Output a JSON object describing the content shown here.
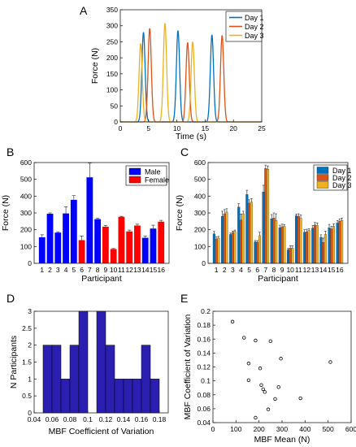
{
  "colors": {
    "day1": "#0072BD",
    "day2": "#D95319",
    "day3": "#EDB120",
    "male": "#0000ff",
    "female": "#ff0000",
    "hist": "#2a1fb0"
  },
  "chart_data": [
    {
      "panel": "A",
      "type": "line",
      "xlabel": "Time (s)",
      "ylabel": "Force (N)",
      "xlim": [
        0,
        25
      ],
      "ylim": [
        0,
        350
      ],
      "xticks": [
        0,
        5,
        10,
        15,
        20,
        25
      ],
      "yticks": [
        0,
        50,
        100,
        150,
        200,
        250,
        300,
        350
      ],
      "legend": [
        "Day 1",
        "Day 2",
        "Day 3"
      ],
      "legend_position": "top-right",
      "series": [
        {
          "name": "Day 1",
          "peaks": [
            [
              4.1,
              280
            ],
            [
              10.2,
              285
            ],
            [
              16.2,
              272
            ]
          ],
          "width": 0.65
        },
        {
          "name": "Day 2",
          "peaks": [
            [
              5.2,
              292
            ],
            [
              11.9,
              248
            ],
            [
              18.0,
              270
            ]
          ],
          "width": 0.65
        },
        {
          "name": "Day 3",
          "peaks": [
            [
              3.6,
              245
            ],
            [
              7.9,
              308
            ],
            [
              12.8,
              250
            ]
          ],
          "width": 0.65
        }
      ]
    },
    {
      "panel": "B",
      "type": "bar",
      "xlabel": "Participant",
      "ylabel": "Force (N)",
      "ylim": [
        0,
        600
      ],
      "yticks": [
        0,
        100,
        200,
        300,
        400,
        500,
        600
      ],
      "categories": [
        "1",
        "2",
        "3",
        "4",
        "5",
        "6",
        "7",
        "8",
        "9",
        "10",
        "11",
        "12",
        "13",
        "14",
        "15",
        "16"
      ],
      "values": [
        155,
        295,
        183,
        297,
        378,
        138,
        512,
        263,
        218,
        85,
        277,
        190,
        225,
        152,
        207,
        248
      ],
      "errors": [
        15,
        5,
        5,
        40,
        25,
        25,
        85,
        5,
        8,
        3,
        3,
        8,
        8,
        10,
        20,
        8
      ],
      "group": [
        "Male",
        "Male",
        "Male",
        "Male",
        "Male",
        "Female",
        "Male",
        "Male",
        "Female",
        "Female",
        "Female",
        "Female",
        "Female",
        "Male",
        "Male",
        "Female"
      ],
      "legend": [
        "Male",
        "Female"
      ],
      "legend_position": "top-right"
    },
    {
      "panel": "C",
      "type": "bar",
      "xlabel": "Participant",
      "ylabel": "Force (N)",
      "ylim": [
        0,
        600
      ],
      "yticks": [
        0,
        100,
        200,
        300,
        400,
        500,
        600
      ],
      "categories": [
        "1",
        "2",
        "3",
        "4",
        "5",
        "6",
        "7",
        "8",
        "9",
        "10",
        "11",
        "12",
        "13",
        "14",
        "15",
        "16"
      ],
      "legend": [
        "Day 1",
        "Day 2",
        "Day 3"
      ],
      "legend_position": "top-right",
      "series": [
        {
          "name": "Day 1",
          "values": [
            175,
            280,
            172,
            335,
            410,
            128,
            425,
            265,
            212,
            80,
            283,
            185,
            210,
            155,
            212,
            240
          ],
          "errors": [
            15,
            30,
            8,
            20,
            25,
            8,
            40,
            25,
            15,
            8,
            10,
            15,
            15,
            15,
            20,
            15
          ]
        },
        {
          "name": "Day 2",
          "values": [
            145,
            295,
            182,
            258,
            358,
            125,
            565,
            270,
            218,
            90,
            280,
            188,
            228,
            125,
            205,
            250
          ],
          "errors": [
            12,
            25,
            10,
            35,
            20,
            10,
            20,
            30,
            15,
            15,
            15,
            15,
            15,
            25,
            15,
            15
          ]
        },
        {
          "name": "Day 3",
          "values": [
            150,
            305,
            190,
            295,
            365,
            165,
            560,
            255,
            220,
            90,
            268,
            195,
            225,
            172,
            220,
            255
          ],
          "errors": [
            10,
            20,
            8,
            15,
            20,
            20,
            20,
            40,
            10,
            15,
            20,
            10,
            15,
            20,
            15,
            15
          ]
        }
      ]
    },
    {
      "panel": "D",
      "type": "bar",
      "subtype": "histogram",
      "xlabel": "MBF Coefficient of Variation",
      "ylabel": "N Participants",
      "xlim": [
        0.04,
        0.19
      ],
      "ylim": [
        0,
        3
      ],
      "xticks": [
        0.04,
        0.06,
        0.08,
        0.1,
        0.12,
        0.14,
        0.16,
        0.18
      ],
      "xticklabels": [
        "0.04",
        "0.06",
        "0.08",
        "0.1",
        "0.12",
        "0.14",
        "0.16",
        "0.18"
      ],
      "yticks": [
        0,
        0.5,
        1,
        1.5,
        2,
        2.5,
        3
      ],
      "yticklabels": [
        "0",
        "0.5",
        "1",
        "1.5",
        "2",
        "2.5",
        "3"
      ],
      "bin_edges": [
        0.04,
        0.05,
        0.06,
        0.07,
        0.08,
        0.09,
        0.1,
        0.11,
        0.12,
        0.13,
        0.14,
        0.15,
        0.16,
        0.17,
        0.18,
        0.19
      ],
      "counts": [
        0,
        2,
        2,
        1,
        2,
        3,
        0,
        3,
        2,
        1,
        1,
        1,
        2,
        1,
        0
      ]
    },
    {
      "panel": "E",
      "type": "scatter",
      "xlabel": "MBF Mean (N)",
      "ylabel": "MBF Coefficient of Variation",
      "xlim": [
        0,
        600
      ],
      "ylim": [
        0.04,
        0.2
      ],
      "xticks": [
        0,
        100,
        200,
        300,
        400,
        500,
        600
      ],
      "yticks": [
        0.04,
        0.06,
        0.08,
        0.1,
        0.12,
        0.14,
        0.16,
        0.18,
        0.2
      ],
      "yticklabels": [
        "0.04",
        "0.06",
        "0.08",
        "0.1",
        "0.12",
        "0.14",
        "0.16",
        "0.18",
        "0.2"
      ],
      "points": [
        [
          85,
          0.185
        ],
        [
          135,
          0.162
        ],
        [
          185,
          0.158
        ],
        [
          250,
          0.157
        ],
        [
          155,
          0.125
        ],
        [
          205,
          0.118
        ],
        [
          295,
          0.132
        ],
        [
          510,
          0.127
        ],
        [
          155,
          0.101
        ],
        [
          210,
          0.094
        ],
        [
          218,
          0.088
        ],
        [
          285,
          0.091
        ],
        [
          225,
          0.084
        ],
        [
          270,
          0.074
        ],
        [
          380,
          0.075
        ],
        [
          240,
          0.059
        ],
        [
          185,
          0.047
        ]
      ]
    }
  ],
  "panel_labels": [
    "A",
    "B",
    "C",
    "D",
    "E"
  ]
}
